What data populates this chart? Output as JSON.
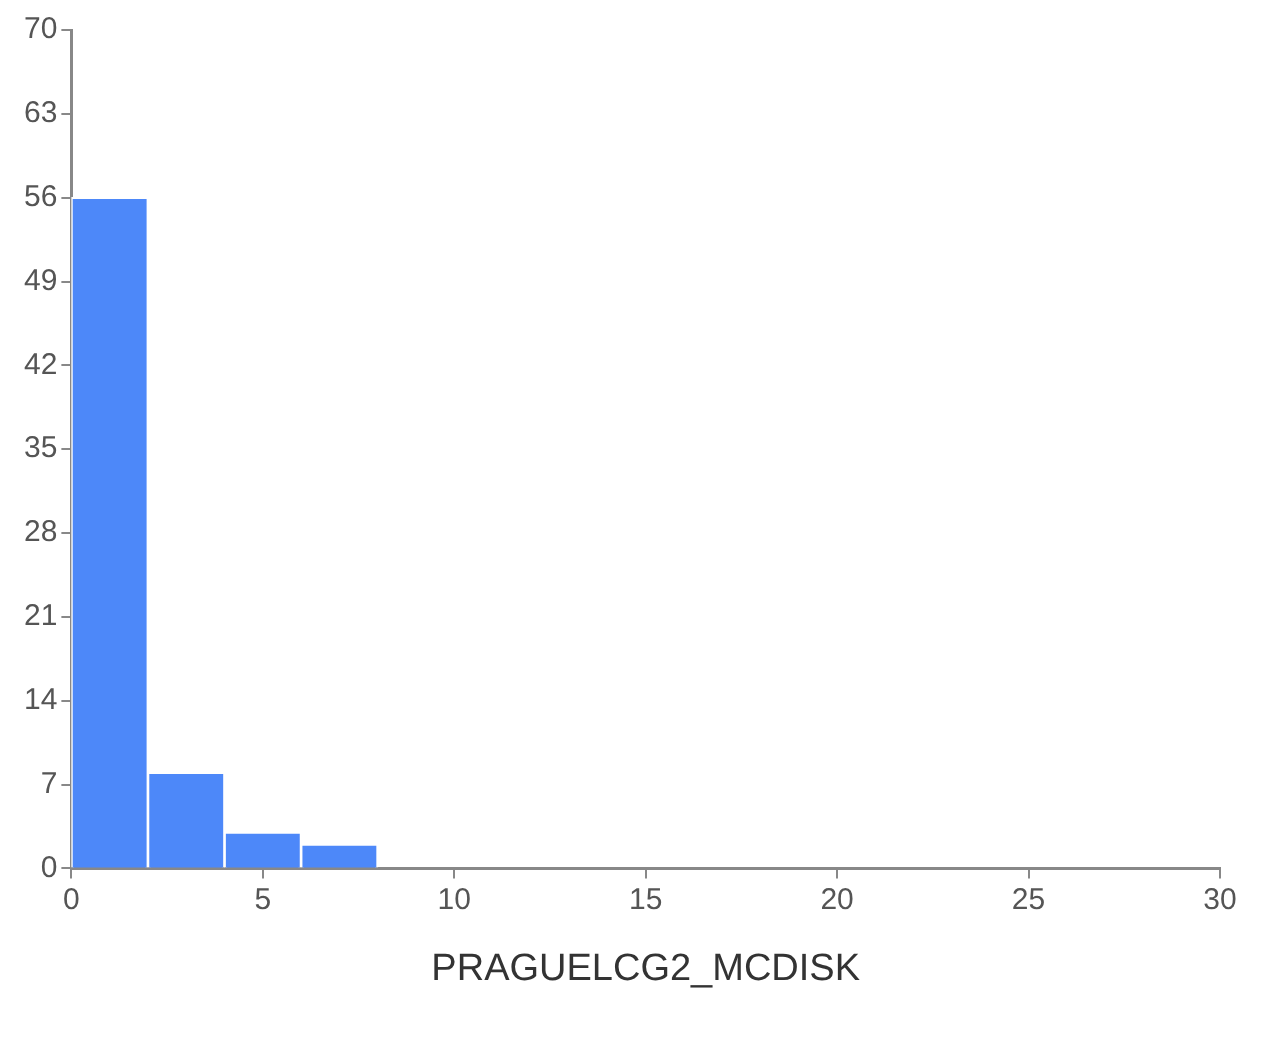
{
  "chart_data": {
    "type": "histogram",
    "xlabel": "PRAGUELCG2_MCDISK",
    "bins": [
      0,
      2,
      4,
      6,
      8
    ],
    "values": [
      56,
      8,
      3,
      2
    ],
    "color": "#4d88f9",
    "xlim": [
      0,
      30
    ],
    "xticks": [
      0,
      5,
      10,
      15,
      20,
      25,
      30
    ],
    "ylim": [
      0,
      70
    ],
    "yticks": [
      0,
      7,
      14,
      21,
      28,
      35,
      42,
      49,
      56,
      63,
      70
    ],
    "grid": false,
    "legend": false
  }
}
